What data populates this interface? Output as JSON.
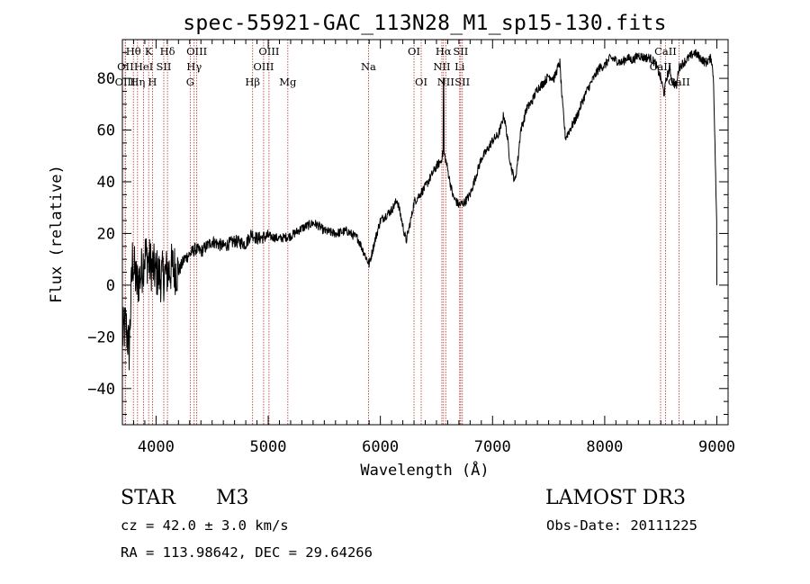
{
  "chart_data": {
    "type": "line",
    "title": "spec-55921-GAC_113N28_M1_sp15-130.fits",
    "xlabel": "Wavelength (Å)",
    "ylabel": "Flux (relative)",
    "xlim": [
      3700,
      9100
    ],
    "ylim": [
      -54,
      95
    ],
    "xticks": [
      4000,
      5000,
      6000,
      7000,
      8000,
      9000
    ],
    "yticks": [
      -40,
      -20,
      0,
      20,
      40,
      60,
      80
    ],
    "spectrum": {
      "x": [
        3700,
        3730,
        3760,
        3790,
        3830,
        3870,
        3900,
        3950,
        4000,
        4050,
        4100,
        4150,
        4200,
        4250,
        4300,
        4350,
        4400,
        4450,
        4500,
        4600,
        4700,
        4800,
        4850,
        4900,
        5000,
        5100,
        5200,
        5300,
        5400,
        5450,
        5500,
        5600,
        5700,
        5800,
        5850,
        5900,
        5950,
        6000,
        6100,
        6150,
        6200,
        6230,
        6280,
        6300,
        6350,
        6400,
        6450,
        6500,
        6540,
        6563,
        6590,
        6620,
        6650,
        6700,
        6750,
        6800,
        6850,
        6900,
        6950,
        7000,
        7050,
        7080,
        7100,
        7130,
        7150,
        7170,
        7200,
        7230,
        7250,
        7280,
        7300,
        7350,
        7400,
        7450,
        7500,
        7550,
        7580,
        7600,
        7620,
        7650,
        7700,
        7750,
        7800,
        7850,
        7900,
        7950,
        8000,
        8050,
        8100,
        8150,
        8200,
        8250,
        8300,
        8350,
        8400,
        8450,
        8500,
        8530,
        8550,
        8580,
        8600,
        8640,
        8660,
        8700,
        8750,
        8800,
        8850,
        8900,
        8950,
        8970,
        9000
      ],
      "y": [
        -20,
        -15,
        -25,
        10,
        0,
        5,
        12,
        8,
        5,
        3,
        5,
        7,
        5,
        10,
        12,
        14,
        13,
        15,
        17,
        15,
        17,
        16,
        20,
        18,
        19,
        18,
        19,
        22,
        24,
        23,
        21,
        20,
        21,
        18,
        13,
        8,
        17,
        25,
        29,
        33,
        23,
        17,
        27,
        32,
        35,
        38,
        42,
        46,
        48,
        52,
        47,
        40,
        34,
        31,
        32,
        35,
        42,
        49,
        52,
        56,
        58,
        62,
        66,
        58,
        50,
        45,
        40,
        50,
        60,
        64,
        68,
        71,
        76,
        78,
        81,
        80,
        84,
        86,
        72,
        57,
        61,
        65,
        71,
        76,
        80,
        84,
        85,
        88,
        87,
        86,
        88,
        87,
        89,
        88,
        88,
        86,
        80,
        74,
        80,
        84,
        79,
        77,
        84,
        86,
        88,
        90,
        88,
        86,
        88,
        80,
        20
      ]
    },
    "lines": [
      {
        "label": "Hθ",
        "x": 3798,
        "row": 1
      },
      {
        "label": "OII",
        "x": 3727,
        "row": 2
      },
      {
        "label": "OIII",
        "x": 3725,
        "row": 3
      },
      {
        "label": "Hη",
        "x": 3835,
        "row": 3
      },
      {
        "label": "K",
        "x": 3934,
        "row": 1
      },
      {
        "label": "HeI",
        "x": 3889,
        "row": 2
      },
      {
        "label": "SII",
        "x": 4069,
        "row": 2
      },
      {
        "label": "H",
        "x": 3968,
        "row": 3
      },
      {
        "label": "Hδ",
        "x": 4102,
        "row": 1
      },
      {
        "label": "OIII",
        "x": 4363,
        "row": 1
      },
      {
        "label": "Hγ",
        "x": 4340,
        "row": 2
      },
      {
        "label": "G",
        "x": 4305,
        "row": 3
      },
      {
        "label": "OIII",
        "x": 5007,
        "row": 1
      },
      {
        "label": "OIII",
        "x": 4959,
        "row": 2
      },
      {
        "label": "Hβ",
        "x": 4861,
        "row": 3
      },
      {
        "label": "Mg",
        "x": 5175,
        "row": 3
      },
      {
        "label": "Na",
        "x": 5894,
        "row": 2
      },
      {
        "label": "OI",
        "x": 6300,
        "row": 1
      },
      {
        "label": "OI",
        "x": 6364,
        "row": 3
      },
      {
        "label": "Hα",
        "x": 6563,
        "row": 1
      },
      {
        "label": "SII",
        "x": 6716,
        "row": 1
      },
      {
        "label": "NII",
        "x": 6548,
        "row": 2
      },
      {
        "label": "Li",
        "x": 6707,
        "row": 2
      },
      {
        "label": "NII",
        "x": 6583,
        "row": 3
      },
      {
        "label": "SII",
        "x": 6731,
        "row": 3
      },
      {
        "label": "CaII",
        "x": 8542,
        "row": 1
      },
      {
        "label": "CaII",
        "x": 8498,
        "row": 2
      },
      {
        "label": "CaII",
        "x": 8662,
        "row": 3
      }
    ]
  },
  "info": {
    "class_label": "STAR",
    "subclass": "M3",
    "survey": "LAMOST DR3",
    "cz": "cz = 42.0 ± 3.0 km/s",
    "obs_date": "Obs-Date: 20111225",
    "coords": "RA = 113.98642, DEC =  29.64266"
  }
}
